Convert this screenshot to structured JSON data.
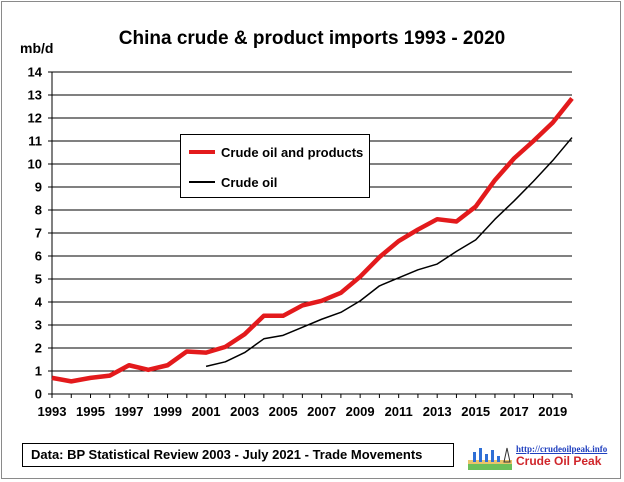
{
  "chart_data": {
    "type": "line",
    "title": "China crude & product imports 1993 - 2020",
    "ylabel": "mb/d",
    "xlabel": "",
    "xlim": [
      1993,
      2020
    ],
    "ylim": [
      0,
      14
    ],
    "yticks": [
      0,
      1,
      2,
      3,
      4,
      5,
      6,
      7,
      8,
      9,
      10,
      11,
      12,
      13,
      14
    ],
    "xticks": [
      1993,
      1995,
      1997,
      1999,
      2001,
      2003,
      2005,
      2007,
      2009,
      2011,
      2013,
      2015,
      2017,
      2019
    ],
    "grid": true,
    "legend_position": "upper-left",
    "series": [
      {
        "name": "Crude oil and products",
        "color": "#e31a1c",
        "x": [
          1993,
          1994,
          1995,
          1996,
          1997,
          1998,
          1999,
          2000,
          2001,
          2002,
          2003,
          2004,
          2005,
          2006,
          2007,
          2008,
          2009,
          2010,
          2011,
          2012,
          2013,
          2014,
          2015,
          2016,
          2017,
          2018,
          2019,
          2020
        ],
        "values": [
          0.7,
          0.55,
          0.7,
          0.8,
          1.25,
          1.05,
          1.25,
          1.85,
          1.8,
          2.05,
          2.6,
          3.4,
          3.4,
          3.85,
          4.05,
          4.4,
          5.1,
          5.95,
          6.65,
          7.15,
          7.6,
          7.5,
          8.15,
          9.3,
          10.25,
          11.0,
          11.8,
          12.85
        ]
      },
      {
        "name": "Crude oil",
        "color": "#000000",
        "x": [
          2001,
          2002,
          2003,
          2004,
          2005,
          2006,
          2007,
          2008,
          2009,
          2010,
          2011,
          2012,
          2013,
          2014,
          2015,
          2016,
          2017,
          2018,
          2019,
          2020
        ],
        "values": [
          1.2,
          1.4,
          1.8,
          2.4,
          2.55,
          2.9,
          3.25,
          3.55,
          4.05,
          4.7,
          5.05,
          5.4,
          5.65,
          6.2,
          6.7,
          7.6,
          8.4,
          9.25,
          10.15,
          11.15
        ]
      }
    ]
  },
  "source": "Data: BP Statistical Review 2003 - July 2021 - Trade Movements",
  "logo": {
    "url_text": "http://crudeoilpeak.info",
    "name": "Crude Oil Peak"
  }
}
